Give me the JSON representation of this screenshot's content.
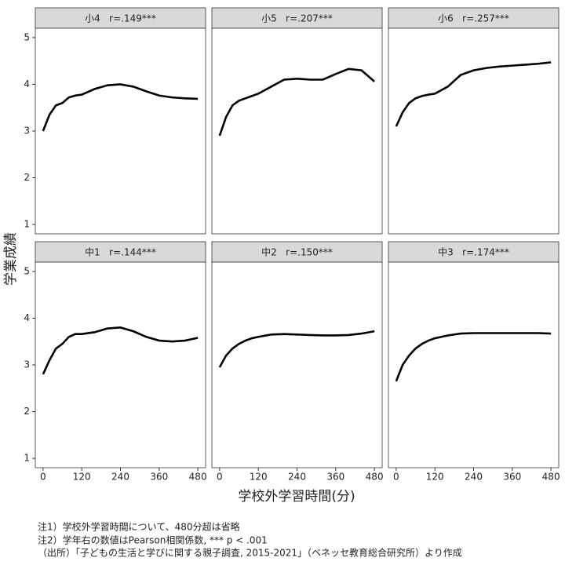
{
  "x_label": "学校外学習時間(分)",
  "y_label": "学業成績",
  "notes": [
    "注1）学校外学習時間について、480分超は省略",
    "注2）学年右の数値はPearson相関係数, *** p < .001",
    "（出所）「子どもの生活と学びに関する親子調査, 2015-2021」（ベネッセ教育総合研究所）より作成"
  ],
  "facet_axes": {
    "xlim": [
      -24,
      504
    ],
    "ylim": [
      0.8,
      5.2
    ],
    "xticks": [
      0,
      120,
      240,
      360,
      480
    ],
    "yticks": [
      1,
      2,
      3,
      4,
      5
    ],
    "x": [
      0,
      20,
      40,
      60,
      80,
      100,
      120,
      160,
      200,
      240,
      280,
      320,
      360,
      400,
      440,
      480
    ]
  },
  "chart_data": [
    {
      "type": "line",
      "title": "小4   r=.149***",
      "color": "#000000",
      "values": [
        3.0,
        3.35,
        3.55,
        3.6,
        3.72,
        3.76,
        3.78,
        3.9,
        3.98,
        4.0,
        3.95,
        3.85,
        3.76,
        3.72,
        3.7,
        3.69
      ]
    },
    {
      "type": "line",
      "title": "小5   r=.207***",
      "color": "#000000",
      "values": [
        2.9,
        3.3,
        3.55,
        3.65,
        3.7,
        3.75,
        3.8,
        3.95,
        4.1,
        4.12,
        4.1,
        4.1,
        4.22,
        4.33,
        4.3,
        4.06
      ]
    },
    {
      "type": "line",
      "title": "小6   r=.257***",
      "color": "#000000",
      "values": [
        3.1,
        3.4,
        3.6,
        3.7,
        3.75,
        3.78,
        3.8,
        3.95,
        4.2,
        4.3,
        4.35,
        4.38,
        4.4,
        4.42,
        4.44,
        4.47
      ]
    },
    {
      "type": "line",
      "title": "中1   r=.144***",
      "color": "#000000",
      "values": [
        2.8,
        3.1,
        3.35,
        3.45,
        3.6,
        3.66,
        3.66,
        3.7,
        3.78,
        3.8,
        3.72,
        3.6,
        3.52,
        3.5,
        3.52,
        3.58
      ]
    },
    {
      "type": "line",
      "title": "中2   r=.150***",
      "color": "#000000",
      "values": [
        2.95,
        3.2,
        3.35,
        3.45,
        3.52,
        3.57,
        3.6,
        3.65,
        3.66,
        3.65,
        3.64,
        3.63,
        3.63,
        3.64,
        3.67,
        3.72
      ]
    },
    {
      "type": "line",
      "title": "中3   r=.174***",
      "color": "#000000",
      "values": [
        2.65,
        3.0,
        3.2,
        3.35,
        3.45,
        3.52,
        3.57,
        3.63,
        3.67,
        3.68,
        3.68,
        3.68,
        3.68,
        3.68,
        3.68,
        3.67
      ]
    }
  ]
}
